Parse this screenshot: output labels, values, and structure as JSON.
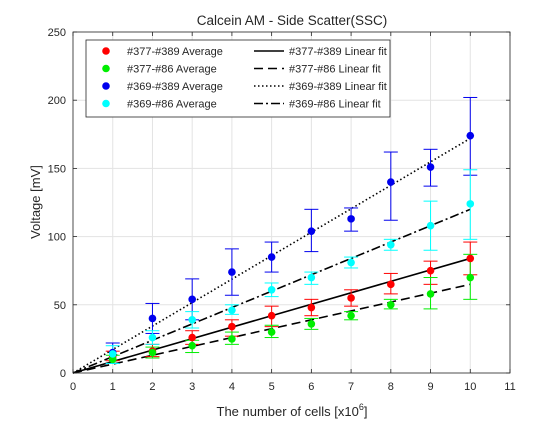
{
  "chart_data": {
    "type": "scatter",
    "title": "Calcein AM - Side Scatter(SSC)",
    "xlabel": "The number of cells [x10",
    "xlabel_sup": "6",
    "xlabel_suffix": "]",
    "ylabel": "Voltage [mV]",
    "xlim": [
      0,
      11
    ],
    "ylim": [
      0,
      250
    ],
    "xticks": [
      0,
      1,
      2,
      3,
      4,
      5,
      6,
      7,
      8,
      9,
      10,
      11
    ],
    "yticks": [
      0,
      50,
      100,
      150,
      200,
      250
    ],
    "grid": true,
    "legend_placement": "top-left",
    "x": [
      1,
      2,
      3,
      4,
      5,
      6,
      7,
      8,
      9,
      10
    ],
    "series": [
      {
        "name": "#377-#389 Average",
        "color": "#ff0000",
        "values": [
          12,
          16,
          26,
          34,
          42,
          48,
          55,
          65,
          75,
          84
        ],
        "err_low": [
          9,
          12,
          21,
          27,
          34,
          42,
          49,
          58,
          65,
          72
        ],
        "err_high": [
          16,
          21,
          31,
          39,
          49,
          54,
          61,
          73,
          82,
          96
        ],
        "fit_name": "#377-#389 Linear fit",
        "fit_style": "solid",
        "fit_endpoint": [
          10,
          84
        ]
      },
      {
        "name": "#377-#86 Average",
        "color": "#00ee00",
        "values": [
          10,
          15,
          20,
          25,
          30,
          36,
          42,
          50,
          58,
          70
        ],
        "err_low": [
          7,
          11,
          15,
          21,
          26,
          32,
          39,
          47,
          47,
          54
        ],
        "err_high": [
          13,
          19,
          24,
          30,
          35,
          40,
          45,
          54,
          70,
          87
        ],
        "fit_name": "#377-#86 Linear fit",
        "fit_style": "dashed",
        "fit_endpoint": [
          10,
          65
        ]
      },
      {
        "name": "#369-#389 Average",
        "color": "#0000ee",
        "values": [
          15,
          40,
          54,
          74,
          85,
          104,
          113,
          140,
          151,
          174
        ],
        "err_low": [
          7,
          29,
          39,
          57,
          74,
          89,
          104,
          112,
          137,
          145
        ],
        "err_high": [
          22,
          51,
          69,
          91,
          96,
          120,
          121,
          162,
          164,
          202
        ],
        "fit_name": "#369-#389 Linear fit",
        "fit_style": "dotted",
        "fit_endpoint": [
          10,
          172
        ]
      },
      {
        "name": "#369-#86 Average",
        "color": "#00ffff",
        "values": [
          14,
          26,
          39,
          46,
          61,
          70,
          81,
          94,
          108,
          124
        ],
        "err_low": [
          7,
          21,
          33,
          43,
          56,
          65,
          77,
          90,
          90,
          98
        ],
        "err_high": [
          20,
          31,
          45,
          50,
          66,
          74,
          85,
          98,
          126,
          149
        ],
        "fit_name": "#369-#86 Linear fit",
        "fit_style": "dashdot",
        "fit_endpoint": [
          10,
          120
        ]
      }
    ]
  }
}
